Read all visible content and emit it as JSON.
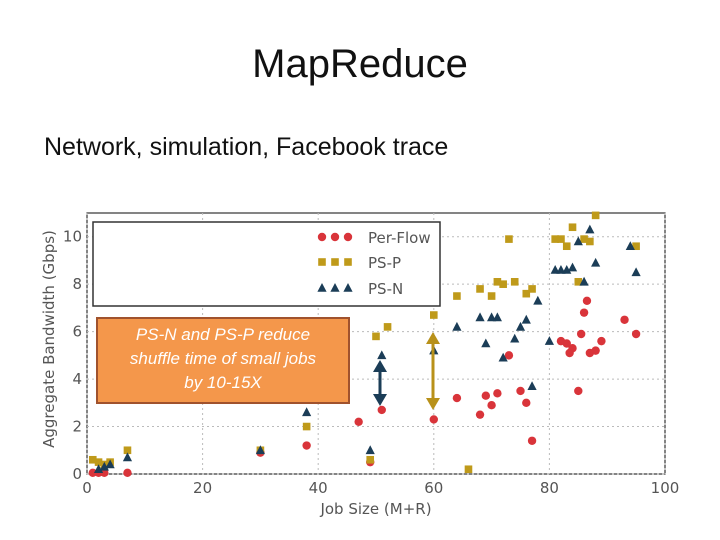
{
  "slide": {
    "title": "MapReduce",
    "subtitle": "Network, simulation, Facebook trace"
  },
  "colors": {
    "per_flow": "#d9343a",
    "ps_p": "#bf9a1a",
    "ps_n": "#1b3d57",
    "callout_fill": "#f4974b",
    "callout_border": "#a0522d",
    "arrow_dark": "#1b3d57",
    "arrow_gold": "#b8911a"
  },
  "callout": {
    "lines": [
      "PS-N and PS-P reduce",
      "shuffle time of small jobs",
      "by 10-15X"
    ]
  },
  "chart_data": {
    "type": "scatter",
    "xlabel": "Job Size (M+R)",
    "ylabel": "Aggregate Bandwidth (Gbps)",
    "xlim": [
      0,
      100
    ],
    "ylim": [
      0,
      11
    ],
    "xticks": [
      0,
      20,
      40,
      60,
      80,
      100
    ],
    "yticks": [
      0,
      2,
      4,
      6,
      8,
      10
    ],
    "grid": true,
    "legend_position": "top-left",
    "series": [
      {
        "name": "Per-Flow",
        "marker": "circle",
        "points": [
          [
            1,
            0.05
          ],
          [
            2,
            0.05
          ],
          [
            3,
            0.05
          ],
          [
            7,
            0.05
          ],
          [
            30,
            0.9
          ],
          [
            38,
            1.2
          ],
          [
            47,
            2.2
          ],
          [
            49,
            0.5
          ],
          [
            51,
            2.7
          ],
          [
            60,
            2.3
          ],
          [
            64,
            3.2
          ],
          [
            68,
            2.5
          ],
          [
            69,
            3.3
          ],
          [
            70,
            2.9
          ],
          [
            71,
            3.4
          ],
          [
            73,
            5.0
          ],
          [
            75,
            3.5
          ],
          [
            76,
            3.0
          ],
          [
            77,
            1.4
          ],
          [
            82,
            5.6
          ],
          [
            83,
            5.5
          ],
          [
            83.5,
            5.1
          ],
          [
            84,
            5.3
          ],
          [
            85,
            3.5
          ],
          [
            85.5,
            5.9
          ],
          [
            86,
            6.8
          ],
          [
            86.5,
            7.3
          ],
          [
            87,
            5.1
          ],
          [
            88,
            5.2
          ],
          [
            89,
            5.6
          ],
          [
            93,
            6.5
          ],
          [
            95,
            5.9
          ]
        ]
      },
      {
        "name": "PS-P",
        "marker": "square",
        "points": [
          [
            1,
            0.6
          ],
          [
            2,
            0.5
          ],
          [
            3,
            0.4
          ],
          [
            4,
            0.5
          ],
          [
            7,
            1.0
          ],
          [
            30,
            1.0
          ],
          [
            38,
            2.0
          ],
          [
            49,
            0.6
          ],
          [
            50,
            5.8
          ],
          [
            52,
            6.2
          ],
          [
            60,
            6.7
          ],
          [
            64,
            7.5
          ],
          [
            66,
            0.2
          ],
          [
            68,
            7.8
          ],
          [
            70,
            7.5
          ],
          [
            71,
            8.1
          ],
          [
            72,
            8.0
          ],
          [
            73,
            9.9
          ],
          [
            74,
            8.1
          ],
          [
            76,
            7.6
          ],
          [
            77,
            7.8
          ],
          [
            81,
            9.9
          ],
          [
            82,
            9.9
          ],
          [
            83,
            9.6
          ],
          [
            84,
            10.4
          ],
          [
            85,
            8.1
          ],
          [
            86,
            9.9
          ],
          [
            87,
            9.8
          ],
          [
            88,
            10.9
          ],
          [
            95,
            9.6
          ]
        ]
      },
      {
        "name": "PS-N",
        "marker": "triangle",
        "points": [
          [
            2,
            0.2
          ],
          [
            3,
            0.3
          ],
          [
            4,
            0.4
          ],
          [
            7,
            0.7
          ],
          [
            30,
            1.0
          ],
          [
            38,
            2.6
          ],
          [
            49,
            1.0
          ],
          [
            51,
            5.0
          ],
          [
            60,
            5.2
          ],
          [
            64,
            6.2
          ],
          [
            68,
            6.6
          ],
          [
            69,
            5.5
          ],
          [
            70,
            6.6
          ],
          [
            71,
            6.6
          ],
          [
            72,
            4.9
          ],
          [
            74,
            5.7
          ],
          [
            75,
            6.2
          ],
          [
            76,
            6.5
          ],
          [
            77,
            3.7
          ],
          [
            78,
            7.3
          ],
          [
            80,
            5.6
          ],
          [
            81,
            8.6
          ],
          [
            82,
            8.6
          ],
          [
            83,
            8.6
          ],
          [
            84,
            8.7
          ],
          [
            85,
            9.8
          ],
          [
            86,
            8.1
          ],
          [
            87,
            10.3
          ],
          [
            88,
            8.9
          ],
          [
            94,
            9.6
          ],
          [
            95,
            8.5
          ]
        ]
      }
    ]
  }
}
